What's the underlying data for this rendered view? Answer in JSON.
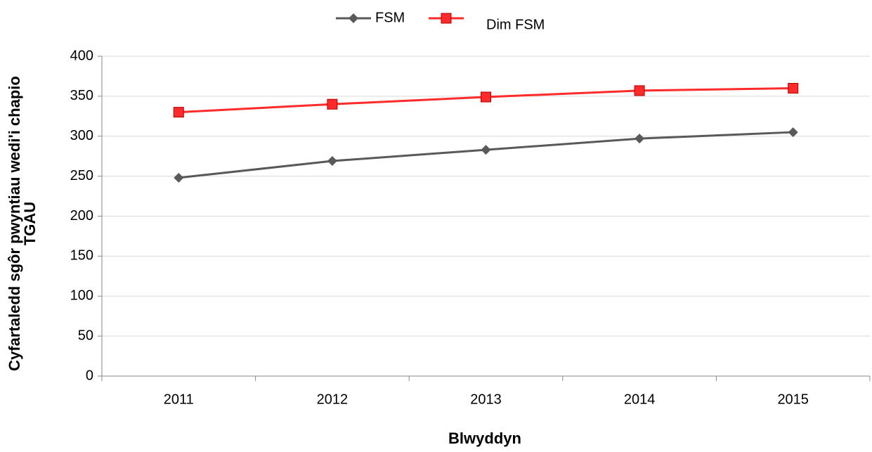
{
  "chart_data": {
    "type": "line",
    "y_label": [
      "Cyfartaledd sgôr pwyntiau wedi'i chapio",
      "TGAU"
    ],
    "x_label": "Blwyddyn",
    "categories": [
      "2011",
      "2012",
      "2013",
      "2014",
      "2015"
    ],
    "series": [
      {
        "name": "FSM",
        "color": "#595959",
        "marker": "diamond",
        "values": [
          248,
          269,
          283,
          297,
          305
        ]
      },
      {
        "name": "Dim FSM",
        "color": "#ff2a2a",
        "marker": "square",
        "values": [
          330,
          340,
          349,
          357,
          360
        ]
      }
    ],
    "ylim": [
      0,
      400
    ],
    "yticks": [
      0,
      50,
      100,
      150,
      200,
      250,
      300,
      350,
      400
    ],
    "grid": true,
    "legend": "top"
  }
}
